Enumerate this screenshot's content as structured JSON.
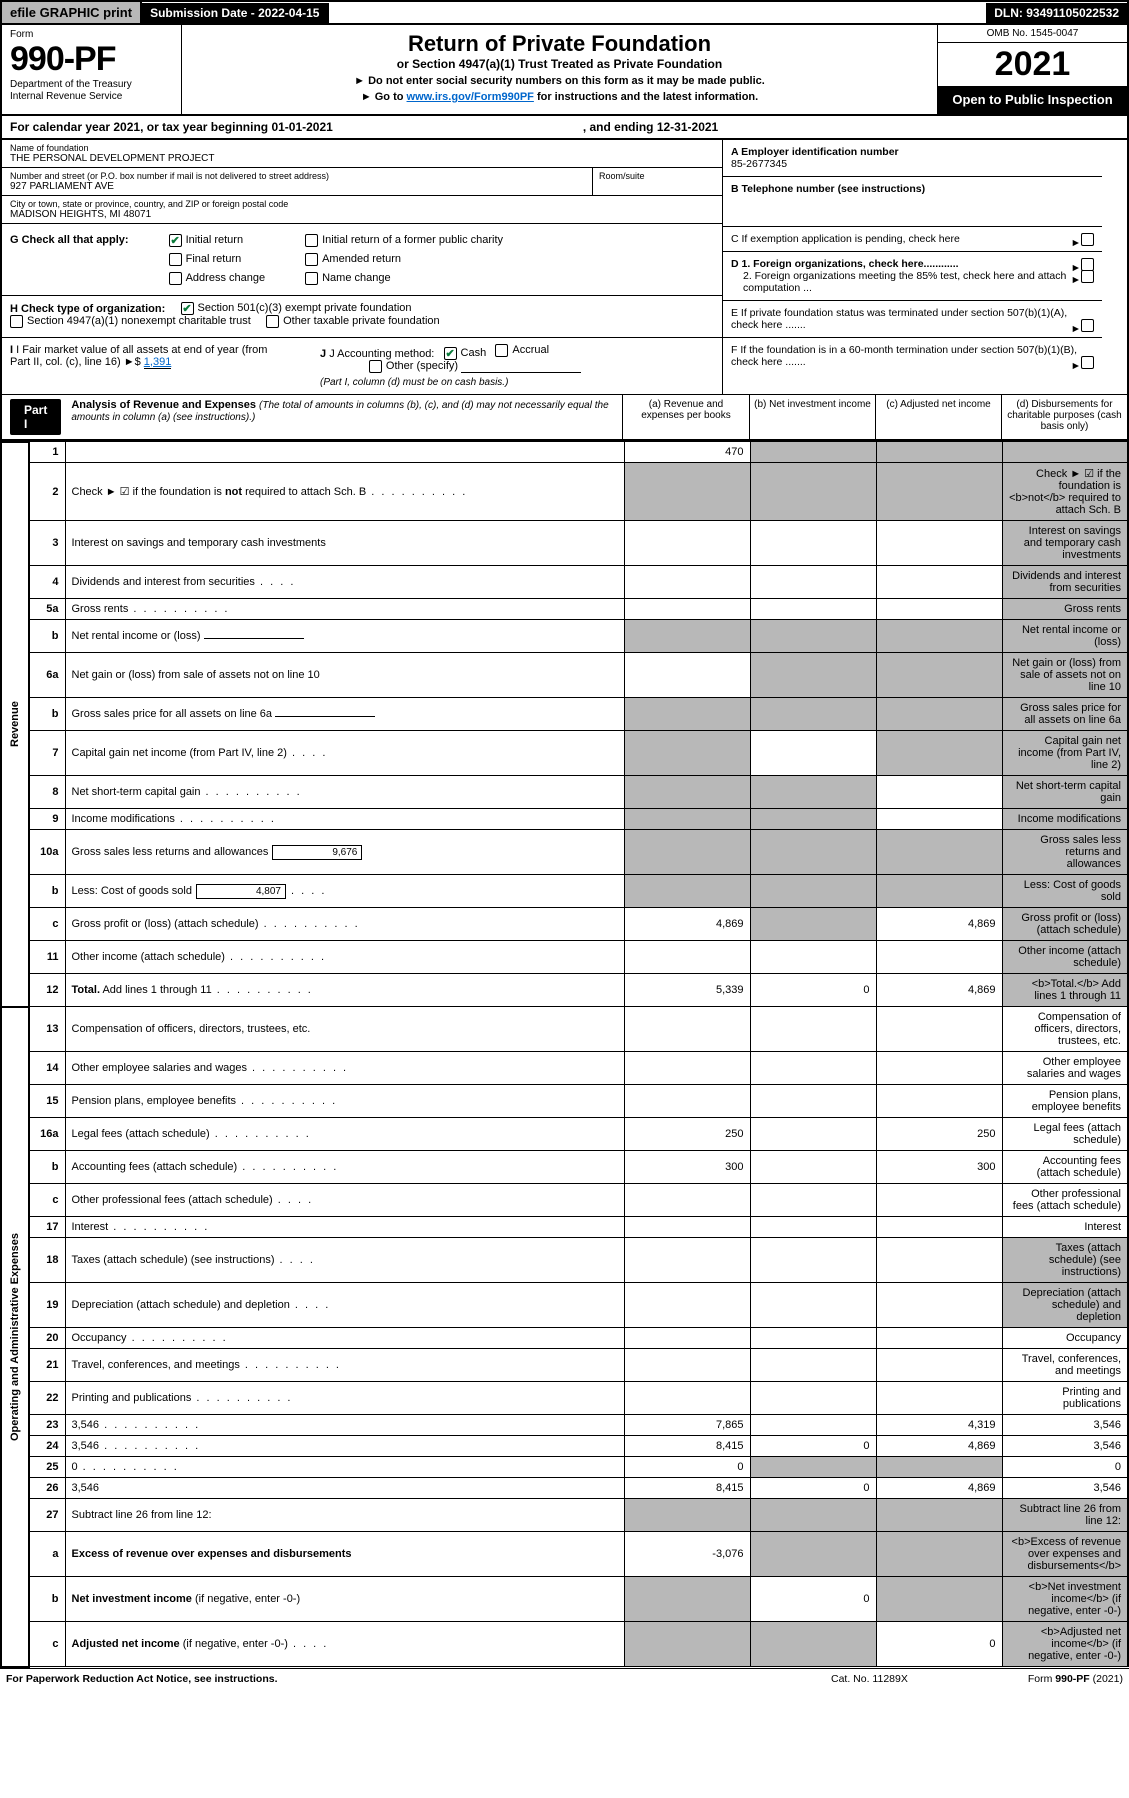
{
  "topbar": {
    "efile": "efile GRAPHIC print",
    "subdate_label": "Submission Date - 2022-04-15",
    "dln": "DLN: 93491105022532"
  },
  "header": {
    "form_label": "Form",
    "form_number": "990-PF",
    "dept": "Department of the Treasury\nInternal Revenue Service",
    "title": "Return of Private Foundation",
    "subtitle": "or Section 4947(a)(1) Trust Treated as Private Foundation",
    "instr1": "► Do not enter social security numbers on this form as it may be made public.",
    "instr2_pre": "► Go to ",
    "instr2_link": "www.irs.gov/Form990PF",
    "instr2_post": " for instructions and the latest information.",
    "omb": "OMB No. 1545-0047",
    "year": "2021",
    "open": "Open to Public Inspection"
  },
  "cal": {
    "begin": "For calendar year 2021, or tax year beginning 01-01-2021",
    "end": ", and ending 12-31-2021"
  },
  "info": {
    "name_label": "Name of foundation",
    "name": "THE PERSONAL DEVELOPMENT PROJECT",
    "addr_label": "Number and street (or P.O. box number if mail is not delivered to street address)",
    "addr": "927 PARLIAMENT AVE",
    "room_label": "Room/suite",
    "city_label": "City or town, state or province, country, and ZIP or foreign postal code",
    "city": "MADISON HEIGHTS, MI  48071",
    "ein_label": "A Employer identification number",
    "ein": "85-2677345",
    "tel_label": "B Telephone number (see instructions)",
    "pending": "C If exemption application is pending, check here",
    "d1": "D 1. Foreign organizations, check here............",
    "d2": "2. Foreign organizations meeting the 85% test, check here and attach computation ...",
    "e": "E  If private foundation status was terminated under section 507(b)(1)(A), check here .......",
    "f": "F  If the foundation is in a 60-month termination under section 507(b)(1)(B), check here .......",
    "g_label": "G Check all that apply:",
    "g_opts": [
      "Initial return",
      "Final return",
      "Address change",
      "Initial return of a former public charity",
      "Amended return",
      "Name change"
    ],
    "h_label": "H Check type of organization:",
    "h1": "Section 501(c)(3) exempt private foundation",
    "h2": "Section 4947(a)(1) nonexempt charitable trust",
    "h3": "Other taxable private foundation",
    "i_label": "I Fair market value of all assets at end of year (from Part II, col. (c), line 16)",
    "i_val": "1,391",
    "j_label": "J Accounting method:",
    "j_cash": "Cash",
    "j_accr": "Accrual",
    "j_other": "Other (specify)",
    "j_note": "(Part I, column (d) must be on cash basis.)"
  },
  "part1": {
    "label": "Part I",
    "title": "Analysis of Revenue and Expenses ",
    "note": "(The total of amounts in columns (b), (c), and (d) may not necessarily equal the amounts in column (a) (see instructions).)",
    "col_a": "(a)  Revenue and expenses per books",
    "col_b": "(b)  Net investment income",
    "col_c": "(c)  Adjusted net income",
    "col_d": "(d)  Disbursements for charitable purposes (cash basis only)"
  },
  "sidelabels": {
    "rev": "Revenue",
    "opex": "Operating and Administrative Expenses"
  },
  "rows": [
    {
      "n": "1",
      "d": "",
      "a": "470",
      "b": "",
      "c": "",
      "shade": [
        "b",
        "c",
        "d"
      ]
    },
    {
      "n": "2",
      "d": "Check ► ☑ if the foundation is <b>not</b> required to attach Sch. B",
      "dots": true,
      "shade": [
        "a",
        "b",
        "c",
        "d"
      ]
    },
    {
      "n": "3",
      "d": "Interest on savings and temporary cash investments",
      "shade": [
        "d"
      ]
    },
    {
      "n": "4",
      "d": "Dividends and interest from securities",
      "dots": "s",
      "shade": [
        "d"
      ]
    },
    {
      "n": "5a",
      "d": "Gross rents",
      "dots": true,
      "shade": [
        "d"
      ]
    },
    {
      "n": "b",
      "d": "Net rental income or (loss)",
      "underline": true,
      "shade": [
        "a",
        "b",
        "c",
        "d"
      ]
    },
    {
      "n": "6a",
      "d": "Net gain or (loss) from sale of assets not on line 10",
      "shade": [
        "b",
        "c",
        "d"
      ]
    },
    {
      "n": "b",
      "d": "Gross sales price for all assets on line 6a",
      "underline": true,
      "shade": [
        "a",
        "b",
        "c",
        "d"
      ]
    },
    {
      "n": "7",
      "d": "Capital gain net income (from Part IV, line 2)",
      "dots": "s",
      "shade": [
        "a",
        "c",
        "d"
      ]
    },
    {
      "n": "8",
      "d": "Net short-term capital gain",
      "dots": true,
      "shade": [
        "a",
        "b",
        "d"
      ]
    },
    {
      "n": "9",
      "d": "Income modifications",
      "dots": true,
      "shade": [
        "a",
        "b",
        "d"
      ]
    },
    {
      "n": "10a",
      "d": "Gross sales less returns and allowances",
      "box": "9,676",
      "shade": [
        "a",
        "b",
        "c",
        "d"
      ]
    },
    {
      "n": "b",
      "d": "Less: Cost of goods sold",
      "dots": "s",
      "box": "4,807",
      "shade": [
        "a",
        "b",
        "c",
        "d"
      ]
    },
    {
      "n": "c",
      "d": "Gross profit or (loss) (attach schedule)",
      "dots": true,
      "a": "4,869",
      "c": "4,869",
      "shade": [
        "b",
        "d"
      ]
    },
    {
      "n": "11",
      "d": "Other income (attach schedule)",
      "dots": true,
      "shade": [
        "d"
      ]
    },
    {
      "n": "12",
      "d": "<b>Total.</b> Add lines 1 through 11",
      "dots": true,
      "a": "5,339",
      "b": "0",
      "c": "4,869",
      "shade": [
        "d"
      ]
    },
    {
      "n": "13",
      "d": "Compensation of officers, directors, trustees, etc."
    },
    {
      "n": "14",
      "d": "Other employee salaries and wages",
      "dots": true
    },
    {
      "n": "15",
      "d": "Pension plans, employee benefits",
      "dots": true
    },
    {
      "n": "16a",
      "d": "Legal fees (attach schedule)",
      "dots": true,
      "a": "250",
      "c": "250"
    },
    {
      "n": "b",
      "d": "Accounting fees (attach schedule)",
      "dots": true,
      "a": "300",
      "c": "300"
    },
    {
      "n": "c",
      "d": "Other professional fees (attach schedule)",
      "dots": "s"
    },
    {
      "n": "17",
      "d": "Interest",
      "dots": true
    },
    {
      "n": "18",
      "d": "Taxes (attach schedule) (see instructions)",
      "dots": "s",
      "shade": [
        "d"
      ]
    },
    {
      "n": "19",
      "d": "Depreciation (attach schedule) and depletion",
      "dots": "s",
      "shade": [
        "d"
      ]
    },
    {
      "n": "20",
      "d": "Occupancy",
      "dots": true
    },
    {
      "n": "21",
      "d": "Travel, conferences, and meetings",
      "dots": true
    },
    {
      "n": "22",
      "d": "Printing and publications",
      "dots": true
    },
    {
      "n": "23",
      "d": "3,546",
      "dots": true,
      "a": "7,865",
      "c": "4,319"
    },
    {
      "n": "24",
      "d": "3,546",
      "dots": true,
      "a": "8,415",
      "b": "0",
      "c": "4,869"
    },
    {
      "n": "25",
      "d": "0",
      "dots": true,
      "a": "0",
      "shade": [
        "b",
        "c"
      ]
    },
    {
      "n": "26",
      "d": "3,546",
      "a": "8,415",
      "b": "0",
      "c": "4,869"
    },
    {
      "n": "27",
      "d": "Subtract line 26 from line 12:",
      "shade": [
        "a",
        "b",
        "c",
        "d"
      ]
    },
    {
      "n": "a",
      "d": "<b>Excess of revenue over expenses and disbursements</b>",
      "a": "-3,076",
      "shade": [
        "b",
        "c",
        "d"
      ]
    },
    {
      "n": "b",
      "d": "<b>Net investment income</b> (if negative, enter -0-)",
      "b": "0",
      "shade": [
        "a",
        "c",
        "d"
      ]
    },
    {
      "n": "c",
      "d": "<b>Adjusted net income</b> (if negative, enter -0-)",
      "dots": "s",
      "c": "0",
      "shade": [
        "a",
        "b",
        "d"
      ]
    }
  ],
  "footer": {
    "left": "For Paperwork Reduction Act Notice, see instructions.",
    "mid": "Cat. No. 11289X",
    "right": "Form 990-PF (2021)"
  }
}
